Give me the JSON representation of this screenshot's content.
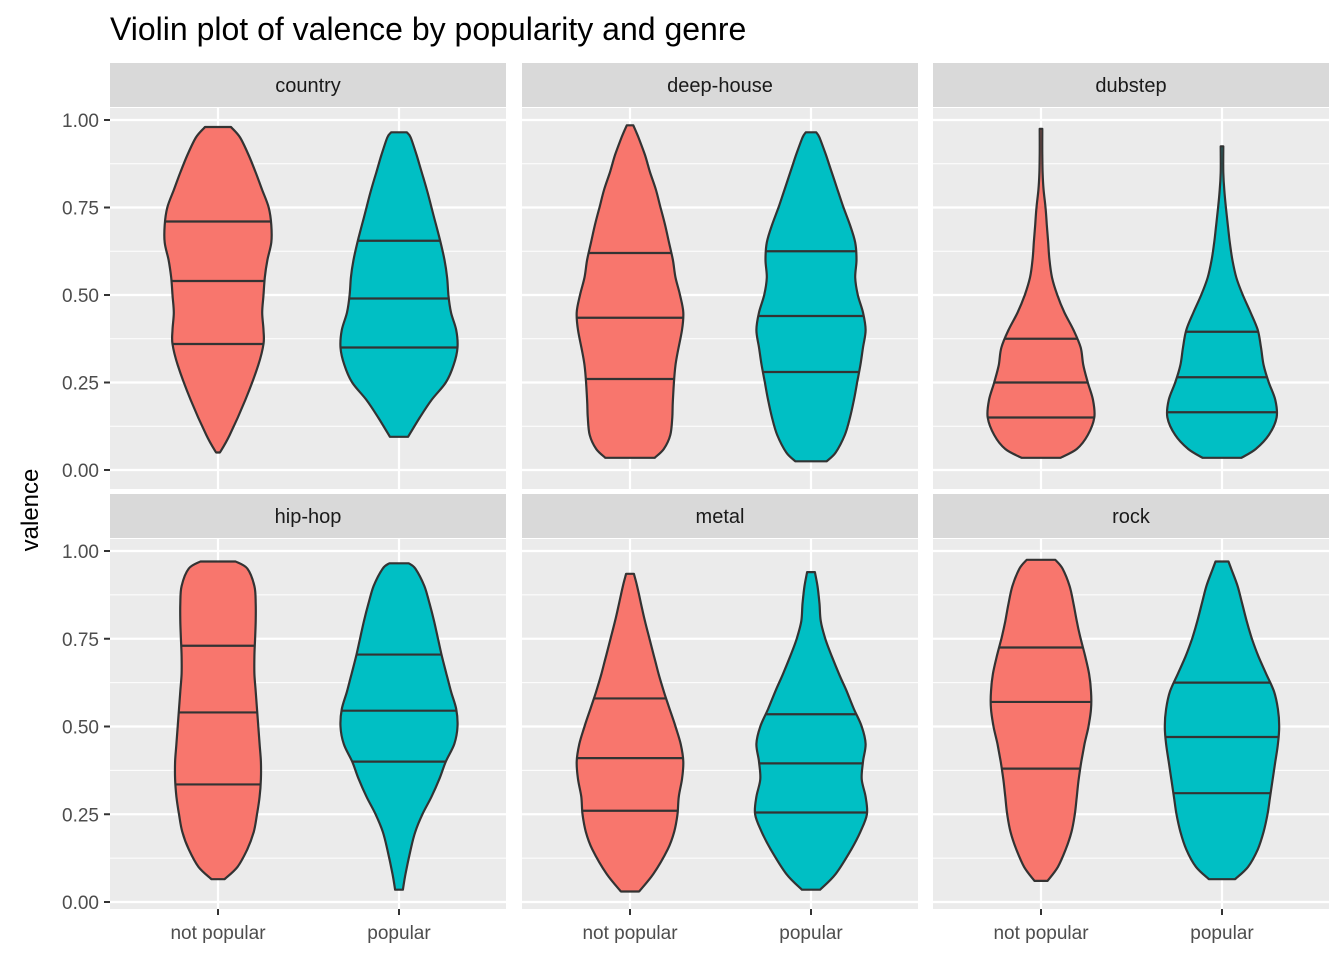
{
  "chart_data": {
    "type": "violin",
    "title": "Violin plot of valence by popularity and genre",
    "xlabel": "",
    "ylabel": "valence",
    "ylim": [
      0,
      1
    ],
    "yticks": [
      "0.00",
      "0.25",
      "0.50",
      "0.75",
      "1.00"
    ],
    "categories": [
      "not popular",
      "popular"
    ],
    "facets": [
      "country",
      "deep-house",
      "dubstep",
      "hip-hop",
      "metal",
      "rock"
    ],
    "facet_layout": "2 rows x 3 columns",
    "grid": true,
    "draw_quantiles": [
      0.25,
      0.5,
      0.75
    ],
    "colors": {
      "not popular": "#F8766D",
      "popular": "#00BFC4",
      "panel": "#EBEBEB",
      "strip": "#D9D9D9",
      "outline": "#333333"
    },
    "violins": [
      {
        "facet": "country",
        "group": "not popular",
        "min": 0.05,
        "max": 0.98,
        "quartiles": [
          0.36,
          0.54,
          0.71
        ],
        "density": [
          [
            0.05,
            0.03
          ],
          [
            0.1,
            0.18
          ],
          [
            0.2,
            0.42
          ],
          [
            0.3,
            0.62
          ],
          [
            0.36,
            0.7
          ],
          [
            0.4,
            0.7
          ],
          [
            0.45,
            0.68
          ],
          [
            0.5,
            0.7
          ],
          [
            0.55,
            0.72
          ],
          [
            0.6,
            0.76
          ],
          [
            0.65,
            0.82
          ],
          [
            0.7,
            0.82
          ],
          [
            0.75,
            0.78
          ],
          [
            0.8,
            0.68
          ],
          [
            0.85,
            0.58
          ],
          [
            0.9,
            0.47
          ],
          [
            0.95,
            0.34
          ],
          [
            0.98,
            0.2
          ]
        ]
      },
      {
        "facet": "country",
        "group": "popular",
        "min": 0.095,
        "max": 0.965,
        "quartiles": [
          0.35,
          0.49,
          0.655
        ],
        "density": [
          [
            0.095,
            0.14
          ],
          [
            0.15,
            0.32
          ],
          [
            0.2,
            0.5
          ],
          [
            0.25,
            0.72
          ],
          [
            0.3,
            0.84
          ],
          [
            0.35,
            0.9
          ],
          [
            0.4,
            0.88
          ],
          [
            0.45,
            0.8
          ],
          [
            0.5,
            0.76
          ],
          [
            0.55,
            0.74
          ],
          [
            0.6,
            0.7
          ],
          [
            0.65,
            0.64
          ],
          [
            0.7,
            0.57
          ],
          [
            0.75,
            0.5
          ],
          [
            0.8,
            0.43
          ],
          [
            0.85,
            0.35
          ],
          [
            0.9,
            0.27
          ],
          [
            0.95,
            0.18
          ],
          [
            0.965,
            0.12
          ]
        ]
      },
      {
        "facet": "deep-house",
        "group": "not popular",
        "min": 0.035,
        "max": 0.985,
        "quartiles": [
          0.26,
          0.435,
          0.62
        ],
        "density": [
          [
            0.035,
            0.38
          ],
          [
            0.06,
            0.52
          ],
          [
            0.1,
            0.62
          ],
          [
            0.15,
            0.65
          ],
          [
            0.2,
            0.66
          ],
          [
            0.3,
            0.7
          ],
          [
            0.4,
            0.8
          ],
          [
            0.45,
            0.82
          ],
          [
            0.5,
            0.77
          ],
          [
            0.55,
            0.7
          ],
          [
            0.6,
            0.66
          ],
          [
            0.65,
            0.6
          ],
          [
            0.7,
            0.54
          ],
          [
            0.75,
            0.47
          ],
          [
            0.8,
            0.4
          ],
          [
            0.85,
            0.31
          ],
          [
            0.9,
            0.23
          ],
          [
            0.95,
            0.13
          ],
          [
            0.985,
            0.05
          ]
        ]
      },
      {
        "facet": "deep-house",
        "group": "popular",
        "min": 0.025,
        "max": 0.965,
        "quartiles": [
          0.28,
          0.44,
          0.625
        ],
        "density": [
          [
            0.025,
            0.24
          ],
          [
            0.05,
            0.38
          ],
          [
            0.1,
            0.52
          ],
          [
            0.15,
            0.6
          ],
          [
            0.2,
            0.66
          ],
          [
            0.25,
            0.71
          ],
          [
            0.3,
            0.76
          ],
          [
            0.35,
            0.8
          ],
          [
            0.4,
            0.84
          ],
          [
            0.45,
            0.8
          ],
          [
            0.5,
            0.72
          ],
          [
            0.55,
            0.68
          ],
          [
            0.6,
            0.7
          ],
          [
            0.65,
            0.68
          ],
          [
            0.7,
            0.6
          ],
          [
            0.75,
            0.5
          ],
          [
            0.8,
            0.41
          ],
          [
            0.85,
            0.32
          ],
          [
            0.9,
            0.23
          ],
          [
            0.95,
            0.13
          ],
          [
            0.965,
            0.08
          ]
        ]
      },
      {
        "facet": "dubstep",
        "group": "not popular",
        "min": 0.035,
        "max": 0.975,
        "quartiles": [
          0.15,
          0.25,
          0.375
        ],
        "density": [
          [
            0.035,
            0.3
          ],
          [
            0.06,
            0.55
          ],
          [
            0.1,
            0.72
          ],
          [
            0.15,
            0.82
          ],
          [
            0.2,
            0.8
          ],
          [
            0.25,
            0.72
          ],
          [
            0.3,
            0.65
          ],
          [
            0.35,
            0.61
          ],
          [
            0.4,
            0.5
          ],
          [
            0.45,
            0.36
          ],
          [
            0.5,
            0.25
          ],
          [
            0.55,
            0.17
          ],
          [
            0.6,
            0.13
          ],
          [
            0.65,
            0.11
          ],
          [
            0.7,
            0.09
          ],
          [
            0.75,
            0.07
          ],
          [
            0.8,
            0.04
          ],
          [
            0.85,
            0.025
          ],
          [
            0.9,
            0.02
          ],
          [
            0.975,
            0.02
          ]
        ]
      },
      {
        "facet": "dubstep",
        "group": "popular",
        "min": 0.035,
        "max": 0.925,
        "quartiles": [
          0.165,
          0.265,
          0.395
        ],
        "density": [
          [
            0.035,
            0.3
          ],
          [
            0.06,
            0.52
          ],
          [
            0.1,
            0.72
          ],
          [
            0.15,
            0.84
          ],
          [
            0.2,
            0.82
          ],
          [
            0.25,
            0.72
          ],
          [
            0.3,
            0.64
          ],
          [
            0.35,
            0.6
          ],
          [
            0.4,
            0.55
          ],
          [
            0.45,
            0.44
          ],
          [
            0.5,
            0.32
          ],
          [
            0.55,
            0.22
          ],
          [
            0.6,
            0.16
          ],
          [
            0.65,
            0.12
          ],
          [
            0.7,
            0.09
          ],
          [
            0.75,
            0.06
          ],
          [
            0.8,
            0.035
          ],
          [
            0.85,
            0.02
          ],
          [
            0.925,
            0.02
          ]
        ]
      },
      {
        "facet": "hip-hop",
        "group": "not popular",
        "min": 0.065,
        "max": 0.97,
        "quartiles": [
          0.335,
          0.54,
          0.73
        ],
        "density": [
          [
            0.065,
            0.1
          ],
          [
            0.1,
            0.3
          ],
          [
            0.15,
            0.45
          ],
          [
            0.2,
            0.55
          ],
          [
            0.25,
            0.6
          ],
          [
            0.3,
            0.64
          ],
          [
            0.35,
            0.66
          ],
          [
            0.4,
            0.66
          ],
          [
            0.45,
            0.64
          ],
          [
            0.5,
            0.62
          ],
          [
            0.55,
            0.6
          ],
          [
            0.6,
            0.58
          ],
          [
            0.65,
            0.56
          ],
          [
            0.7,
            0.56
          ],
          [
            0.75,
            0.57
          ],
          [
            0.8,
            0.58
          ],
          [
            0.85,
            0.58
          ],
          [
            0.9,
            0.56
          ],
          [
            0.95,
            0.45
          ],
          [
            0.97,
            0.27
          ]
        ]
      },
      {
        "facet": "hip-hop",
        "group": "popular",
        "min": 0.035,
        "max": 0.965,
        "quartiles": [
          0.4,
          0.545,
          0.705
        ],
        "density": [
          [
            0.035,
            0.06
          ],
          [
            0.08,
            0.1
          ],
          [
            0.15,
            0.18
          ],
          [
            0.2,
            0.25
          ],
          [
            0.25,
            0.36
          ],
          [
            0.3,
            0.5
          ],
          [
            0.35,
            0.62
          ],
          [
            0.4,
            0.72
          ],
          [
            0.45,
            0.85
          ],
          [
            0.5,
            0.9
          ],
          [
            0.55,
            0.88
          ],
          [
            0.6,
            0.8
          ],
          [
            0.65,
            0.73
          ],
          [
            0.7,
            0.66
          ],
          [
            0.75,
            0.6
          ],
          [
            0.8,
            0.54
          ],
          [
            0.85,
            0.47
          ],
          [
            0.9,
            0.39
          ],
          [
            0.95,
            0.25
          ],
          [
            0.965,
            0.15
          ]
        ]
      },
      {
        "facet": "metal",
        "group": "not popular",
        "min": 0.03,
        "max": 0.935,
        "quartiles": [
          0.26,
          0.41,
          0.58
        ],
        "density": [
          [
            0.03,
            0.14
          ],
          [
            0.08,
            0.36
          ],
          [
            0.15,
            0.58
          ],
          [
            0.2,
            0.68
          ],
          [
            0.25,
            0.73
          ],
          [
            0.3,
            0.75
          ],
          [
            0.35,
            0.8
          ],
          [
            0.4,
            0.82
          ],
          [
            0.45,
            0.78
          ],
          [
            0.5,
            0.7
          ],
          [
            0.55,
            0.61
          ],
          [
            0.6,
            0.52
          ],
          [
            0.65,
            0.44
          ],
          [
            0.7,
            0.37
          ],
          [
            0.75,
            0.3
          ],
          [
            0.8,
            0.23
          ],
          [
            0.85,
            0.17
          ],
          [
            0.9,
            0.11
          ],
          [
            0.935,
            0.06
          ]
        ]
      },
      {
        "facet": "metal",
        "group": "popular",
        "min": 0.035,
        "max": 0.94,
        "quartiles": [
          0.255,
          0.395,
          0.535
        ],
        "density": [
          [
            0.035,
            0.14
          ],
          [
            0.08,
            0.38
          ],
          [
            0.15,
            0.62
          ],
          [
            0.2,
            0.76
          ],
          [
            0.25,
            0.86
          ],
          [
            0.3,
            0.84
          ],
          [
            0.35,
            0.78
          ],
          [
            0.4,
            0.8
          ],
          [
            0.45,
            0.84
          ],
          [
            0.5,
            0.78
          ],
          [
            0.55,
            0.66
          ],
          [
            0.6,
            0.55
          ],
          [
            0.65,
            0.43
          ],
          [
            0.7,
            0.32
          ],
          [
            0.75,
            0.22
          ],
          [
            0.8,
            0.15
          ],
          [
            0.85,
            0.13
          ],
          [
            0.9,
            0.1
          ],
          [
            0.94,
            0.06
          ]
        ]
      },
      {
        "facet": "rock",
        "group": "not popular",
        "min": 0.06,
        "max": 0.975,
        "quartiles": [
          0.38,
          0.57,
          0.725
        ],
        "density": [
          [
            0.06,
            0.1
          ],
          [
            0.1,
            0.26
          ],
          [
            0.15,
            0.38
          ],
          [
            0.2,
            0.47
          ],
          [
            0.25,
            0.52
          ],
          [
            0.3,
            0.55
          ],
          [
            0.35,
            0.58
          ],
          [
            0.4,
            0.62
          ],
          [
            0.45,
            0.67
          ],
          [
            0.5,
            0.73
          ],
          [
            0.55,
            0.77
          ],
          [
            0.6,
            0.77
          ],
          [
            0.65,
            0.74
          ],
          [
            0.7,
            0.68
          ],
          [
            0.75,
            0.61
          ],
          [
            0.8,
            0.55
          ],
          [
            0.85,
            0.5
          ],
          [
            0.9,
            0.44
          ],
          [
            0.95,
            0.33
          ],
          [
            0.975,
            0.22
          ]
        ]
      },
      {
        "facet": "rock",
        "group": "popular",
        "min": 0.065,
        "max": 0.97,
        "quartiles": [
          0.31,
          0.47,
          0.625
        ],
        "density": [
          [
            0.065,
            0.2
          ],
          [
            0.1,
            0.4
          ],
          [
            0.15,
            0.55
          ],
          [
            0.2,
            0.64
          ],
          [
            0.25,
            0.7
          ],
          [
            0.3,
            0.74
          ],
          [
            0.35,
            0.78
          ],
          [
            0.4,
            0.82
          ],
          [
            0.45,
            0.86
          ],
          [
            0.5,
            0.88
          ],
          [
            0.55,
            0.86
          ],
          [
            0.6,
            0.8
          ],
          [
            0.65,
            0.68
          ],
          [
            0.7,
            0.56
          ],
          [
            0.75,
            0.46
          ],
          [
            0.8,
            0.38
          ],
          [
            0.85,
            0.31
          ],
          [
            0.9,
            0.24
          ],
          [
            0.95,
            0.14
          ],
          [
            0.97,
            0.1
          ]
        ]
      }
    ]
  }
}
